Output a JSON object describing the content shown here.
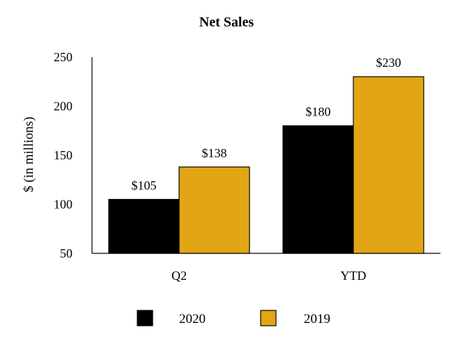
{
  "chart_data": {
    "type": "bar",
    "title": "Net Sales",
    "ylabel": "$ (in millions)",
    "xlabel": "",
    "ylim": [
      50,
      250
    ],
    "yticks": [
      "50",
      "100",
      "150",
      "200",
      "250"
    ],
    "categories": [
      "Q2",
      "YTD"
    ],
    "series": [
      {
        "name": "2020",
        "values": [
          105,
          180
        ],
        "labels": [
          "$105",
          "$180"
        ],
        "color": "#000000"
      },
      {
        "name": "2019",
        "values": [
          138,
          230
        ],
        "labels": [
          "$138",
          "$230"
        ],
        "color": "#E2A516"
      }
    ],
    "legend_position": "bottom",
    "grid": false
  }
}
